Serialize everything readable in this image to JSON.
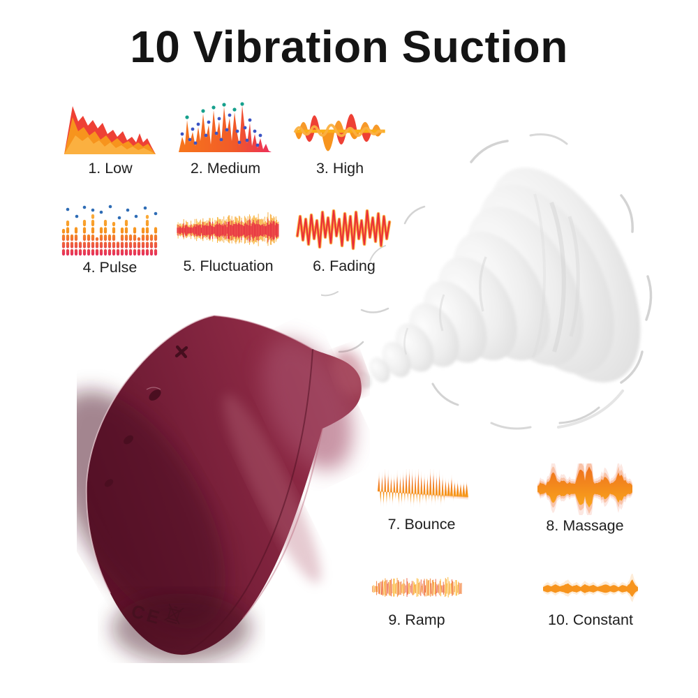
{
  "title": "10 Vibration Suction",
  "modes": [
    {
      "label": "1. Low",
      "icon": "waveform-low-icon"
    },
    {
      "label": "2. Medium",
      "icon": "waveform-medium-icon"
    },
    {
      "label": "3. High",
      "icon": "waveform-high-icon"
    },
    {
      "label": "4. Pulse",
      "icon": "waveform-pulse-icon"
    },
    {
      "label": "5. Fluctuation",
      "icon": "waveform-fluctuation-icon"
    },
    {
      "label": "6. Fading",
      "icon": "waveform-fading-icon"
    },
    {
      "label": "7. Bounce",
      "icon": "waveform-bounce-icon"
    },
    {
      "label": "8. Massage",
      "icon": "waveform-massage-icon"
    },
    {
      "label": "9. Ramp",
      "icon": "waveform-ramp-icon"
    },
    {
      "label": "10. Constant",
      "icon": "waveform-constant-icon"
    }
  ],
  "device": {
    "ce_mark": "CE",
    "icons": [
      "ce-mark",
      "weee-bin-icon"
    ],
    "body_color": "#7b1f37"
  },
  "colors": {
    "title_text": "#141414",
    "label_text": "#1e1e1e",
    "wave_red": "#ee4035",
    "wave_orange": "#f7941d",
    "wave_yellow": "#fbb040",
    "wave_pink": "#e8335a",
    "dot_blue": "#3b54c4",
    "dot_teal": "#16a08c",
    "device_burgundy": "#7b1f37",
    "swirl_gray": "#e9e9e9"
  }
}
